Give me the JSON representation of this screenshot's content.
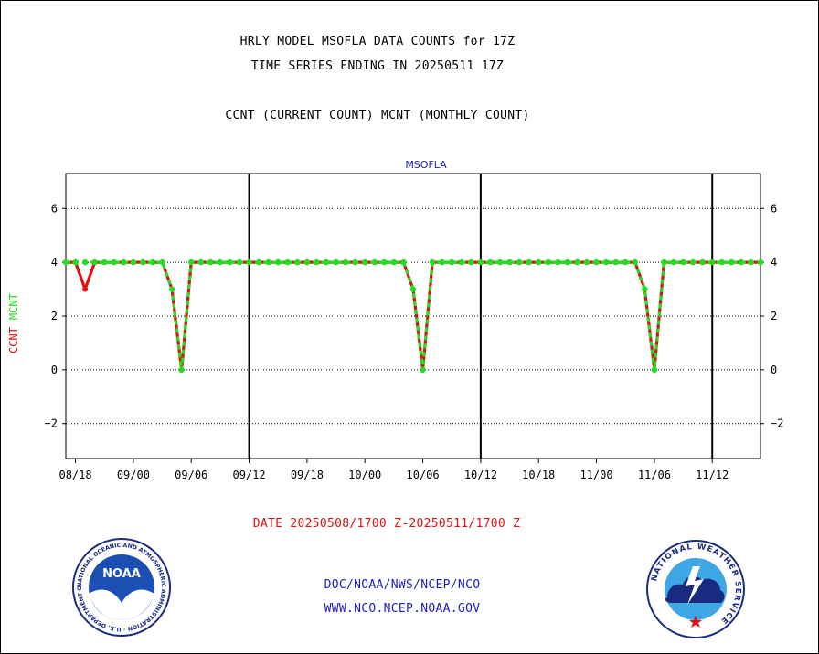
{
  "titles": {
    "line1": "HRLY MODEL MSOFLA DATA COUNTS for 17Z",
    "line2": "TIME SERIES ENDING IN 20250511 17Z",
    "line3": "CCNT (CURRENT COUNT) MCNT (MONTHLY COUNT)"
  },
  "footer": {
    "date_range": "DATE 20250508/1700 Z-20250511/1700 Z",
    "link1": "DOC/NOAA/NWS/NCEP/NCO",
    "link2": "WWW.NCO.NCEP.NOAA.GOV"
  },
  "logos": {
    "left": {
      "name": "NOAA",
      "ring_text": "NATIONAL OCEANIC AND ATMOSPHERIC ADMINISTRATION · U.S. DEPARTMENT OF COMMERCE"
    },
    "right": {
      "name": "NATIONAL WEATHER SERVICE"
    }
  },
  "colors": {
    "ccnt": "#e01010",
    "mcnt": "#22dd22",
    "axis": "#000000",
    "link": "#2020c0"
  },
  "chart_data": {
    "type": "line",
    "title": "MSOFLA",
    "ylabel_parts": [
      "CCNT",
      "MCNT"
    ],
    "ylim": [
      -3.3,
      7.3
    ],
    "yticks": [
      6,
      4,
      2,
      0,
      -2
    ],
    "ytick_labels": [
      "6",
      "4",
      "2",
      "0",
      "−2"
    ],
    "xlim": [
      0,
      72
    ],
    "xticks": [
      1,
      7,
      13,
      19,
      25,
      31,
      37,
      43,
      49,
      55,
      61,
      67
    ],
    "xtick_labels": [
      "08/18",
      "09/00",
      "09/06",
      "09/12",
      "09/18",
      "10/00",
      "10/06",
      "10/12",
      "10/18",
      "11/00",
      "11/06",
      "11/12"
    ],
    "day_boundaries": [
      19,
      43,
      67
    ],
    "grid_y": true,
    "series": [
      {
        "name": "CCNT",
        "color": "#e01010",
        "x": [
          0,
          1,
          2,
          3,
          4,
          5,
          6,
          7,
          8,
          9,
          10,
          11,
          12,
          13,
          14,
          15,
          16,
          17,
          18,
          19,
          20,
          21,
          22,
          23,
          24,
          25,
          26,
          27,
          28,
          29,
          30,
          31,
          32,
          33,
          34,
          35,
          36,
          37,
          38,
          39,
          40,
          41,
          42,
          43,
          44,
          45,
          46,
          47,
          48,
          49,
          50,
          51,
          52,
          53,
          54,
          55,
          56,
          57,
          58,
          59,
          60,
          61,
          62,
          63,
          64,
          65,
          66,
          67,
          68,
          69,
          70,
          71,
          72
        ],
        "values": [
          4,
          4,
          3,
          4,
          4,
          4,
          4,
          4,
          4,
          4,
          4,
          3,
          0,
          4,
          4,
          4,
          4,
          4,
          4,
          4,
          4,
          4,
          4,
          4,
          4,
          4,
          4,
          4,
          4,
          4,
          4,
          4,
          4,
          4,
          4,
          4,
          3,
          0,
          4,
          4,
          4,
          4,
          4,
          4,
          4,
          4,
          4,
          4,
          4,
          4,
          4,
          4,
          4,
          4,
          4,
          4,
          4,
          4,
          4,
          4,
          3,
          0,
          4,
          4,
          4,
          4,
          4,
          4,
          4,
          4,
          4,
          4,
          4
        ]
      },
      {
        "name": "MCNT",
        "color": "#22dd22",
        "x": [
          0,
          1,
          2,
          3,
          4,
          5,
          6,
          7,
          8,
          9,
          10,
          11,
          12,
          13,
          14,
          15,
          16,
          17,
          18,
          19,
          20,
          21,
          22,
          23,
          24,
          25,
          26,
          27,
          28,
          29,
          30,
          31,
          32,
          33,
          34,
          35,
          36,
          37,
          38,
          39,
          40,
          41,
          42,
          43,
          44,
          45,
          46,
          47,
          48,
          49,
          50,
          51,
          52,
          53,
          54,
          55,
          56,
          57,
          58,
          59,
          60,
          61,
          62,
          63,
          64,
          65,
          66,
          67,
          68,
          69,
          70,
          71,
          72
        ],
        "values": [
          4,
          4,
          4,
          4,
          4,
          4,
          4,
          4,
          4,
          4,
          4,
          3,
          0,
          4,
          4,
          4,
          4,
          4,
          4,
          4,
          4,
          4,
          4,
          4,
          4,
          4,
          4,
          4,
          4,
          4,
          4,
          4,
          4,
          4,
          4,
          4,
          3,
          0,
          4,
          4,
          4,
          4,
          4,
          4,
          4,
          4,
          4,
          4,
          4,
          4,
          4,
          4,
          4,
          4,
          4,
          4,
          4,
          4,
          4,
          4,
          3,
          0,
          4,
          4,
          4,
          4,
          4,
          4,
          4,
          4,
          4,
          4,
          4
        ]
      }
    ]
  }
}
